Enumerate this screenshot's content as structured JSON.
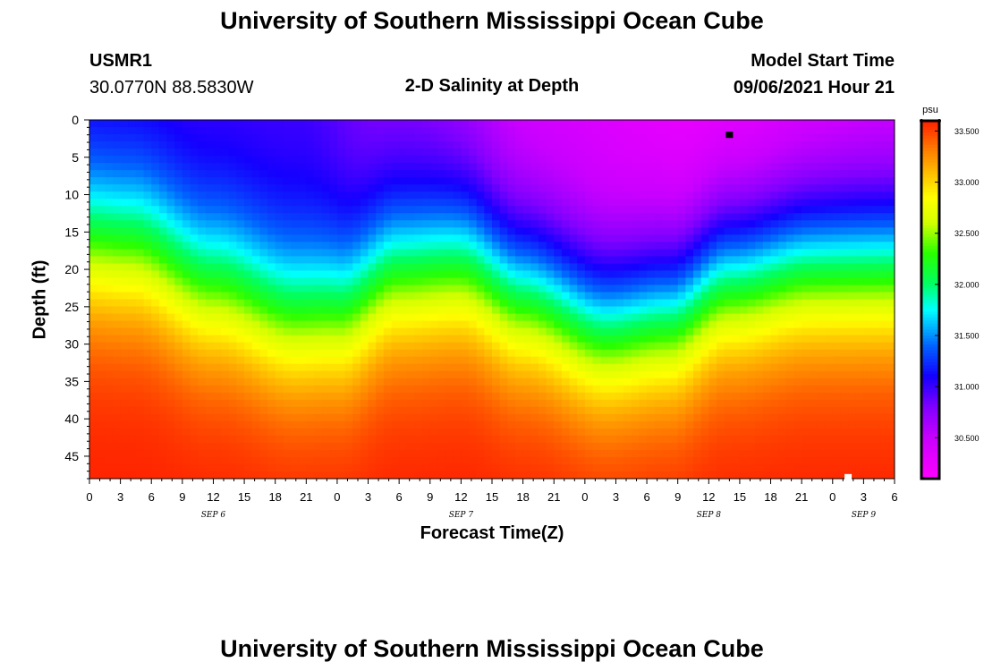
{
  "page": {
    "top_title": "University of Southern Mississippi Ocean Cube",
    "bottom_title": "University of Southern Mississippi Ocean Cube"
  },
  "station": {
    "id": "USMR1",
    "coords": "30.0770N  88.5830W"
  },
  "model": {
    "label": "Model Start Time",
    "time": "09/06/2021 Hour 21"
  },
  "chart_data": {
    "type": "heatmap",
    "title": "2-D Salinity at Depth",
    "xlabel": "Forecast Time(Z)",
    "ylabel": "Depth (ft)",
    "units": "psu",
    "x_hours_range": [
      0,
      78
    ],
    "x_tick_labels": [
      "0",
      "3",
      "6",
      "9",
      "12",
      "15",
      "18",
      "21",
      "0",
      "3",
      "6",
      "9",
      "12",
      "15",
      "18",
      "21",
      "0",
      "3",
      "6",
      "9",
      "12",
      "15",
      "18",
      "21",
      "0",
      "3",
      "6"
    ],
    "day_labels": [
      "SEP 6",
      "SEP 7",
      "SEP 8",
      "SEP 9"
    ],
    "day_label_hours": [
      12,
      36,
      60,
      75
    ],
    "y_range": [
      0,
      48
    ],
    "y_ticks": [
      0,
      5,
      10,
      15,
      20,
      25,
      30,
      35,
      40,
      45
    ],
    "colorbar": {
      "min": 30.1,
      "max": 33.6,
      "ticks": [
        "33.500",
        "33.000",
        "32.500",
        "32.000",
        "31.500",
        "31.000",
        "30.500"
      ],
      "tick_values": [
        33.5,
        33.0,
        32.5,
        32.0,
        31.5,
        31.0,
        30.5
      ]
    },
    "color_stops": [
      {
        "v": 30.1,
        "c": "#ff00ff"
      },
      {
        "v": 30.5,
        "c": "#c800ff"
      },
      {
        "v": 30.8,
        "c": "#8000ff"
      },
      {
        "v": 31.1,
        "c": "#1400ff"
      },
      {
        "v": 31.4,
        "c": "#0064ff"
      },
      {
        "v": 31.75,
        "c": "#00ffff"
      },
      {
        "v": 32.0,
        "c": "#00ff64"
      },
      {
        "v": 32.3,
        "c": "#28ff00"
      },
      {
        "v": 32.6,
        "c": "#d2ff00"
      },
      {
        "v": 32.85,
        "c": "#ffff00"
      },
      {
        "v": 33.05,
        "c": "#ffc800"
      },
      {
        "v": 33.3,
        "c": "#ff8200"
      },
      {
        "v": 33.6,
        "c": "#ff1e00"
      }
    ],
    "surface_salinity_by_hour": [
      [
        0,
        30.95
      ],
      [
        20,
        30.95
      ],
      [
        30,
        30.7
      ],
      [
        45,
        30.35
      ],
      [
        60,
        30.2
      ],
      [
        78,
        30.35
      ]
    ],
    "halocline_depth_ft_by_hour": [
      [
        0,
        16
      ],
      [
        4,
        16.5
      ],
      [
        12,
        22
      ],
      [
        20,
        26
      ],
      [
        24,
        25.5
      ],
      [
        30,
        20
      ],
      [
        36,
        19
      ],
      [
        42,
        23
      ],
      [
        50,
        27.5
      ],
      [
        56,
        26
      ],
      [
        62,
        21
      ],
      [
        70,
        19
      ],
      [
        78,
        19
      ]
    ],
    "halocline_width_ft": 6.5,
    "bottom_salinity": 33.6,
    "markers": [
      {
        "hour": 62,
        "depth_ft": 2,
        "color": "#000000"
      },
      {
        "hour": 73.5,
        "depth_ft": 47.8,
        "color": "#ffffff"
      }
    ]
  }
}
